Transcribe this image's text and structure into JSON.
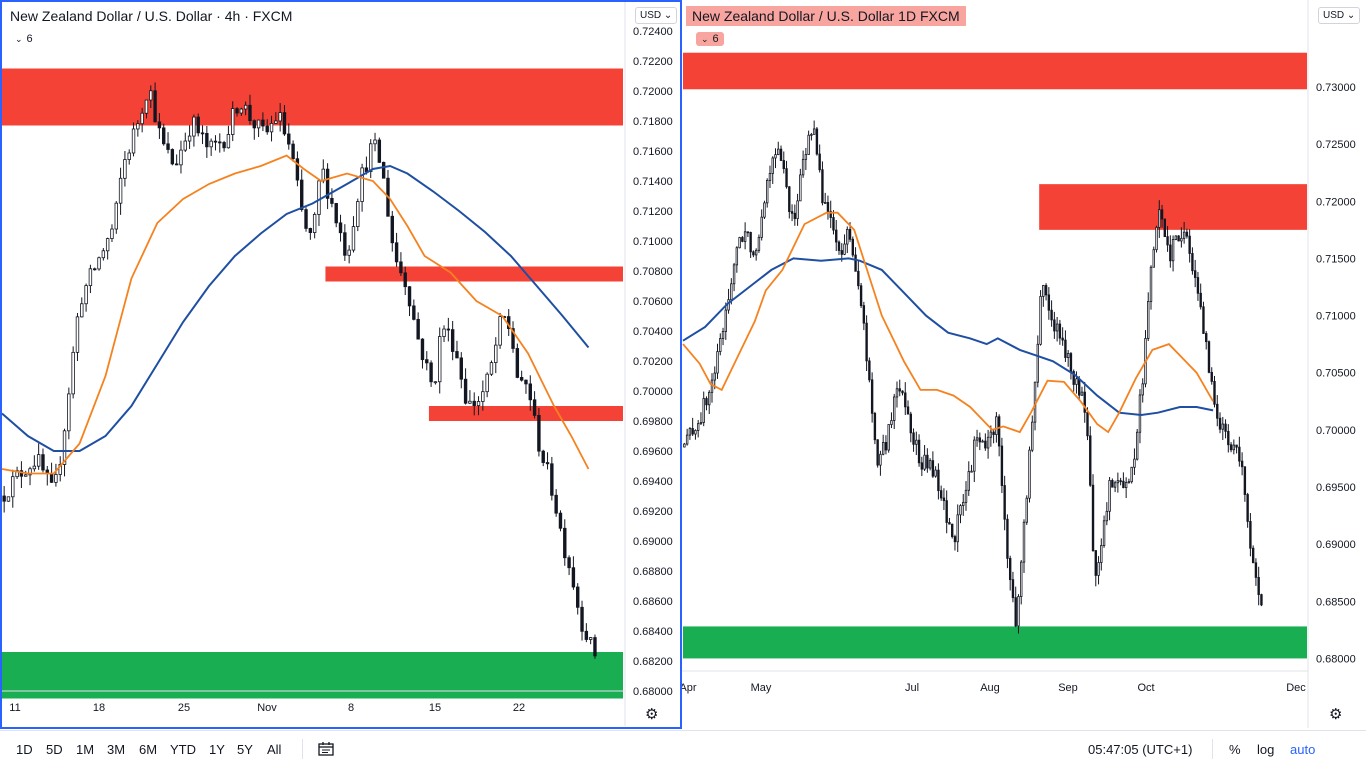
{
  "colors": {
    "resistance": "#f44336",
    "support": "#1aae53",
    "ma_fast": "#f5821f",
    "ma_slow": "#1e4fa3",
    "candle": "#131722",
    "active_border": "#2962ff",
    "title_highlight": "#f8a5a0"
  },
  "left_panel": {
    "title": "New Zealand Dollar / U.S. Dollar · 4h · FXCM",
    "indicator_count": "6",
    "currency": "USD",
    "settings_icon": "gear-icon"
  },
  "right_panel": {
    "title": "New Zealand Dollar / U.S. Dollar   1D   FXCM",
    "indicator_count": "6",
    "currency": "USD",
    "settings_icon": "gear-icon"
  },
  "chart_data": [
    {
      "type": "candlestick",
      "timeframe": "4h",
      "yaxis": {
        "ticks": [
          "0.72400",
          "0.72200",
          "0.72000",
          "0.71800",
          "0.71600",
          "0.71400",
          "0.71200",
          "0.71000",
          "0.70800",
          "0.70600",
          "0.70400",
          "0.70200",
          "0.70000",
          "0.69800",
          "0.69600",
          "0.69400",
          "0.69200",
          "0.69000",
          "0.68800",
          "0.68600",
          "0.68400",
          "0.68200",
          "0.68000"
        ],
        "range": [
          0.68,
          0.7242
        ]
      },
      "xaxis": {
        "ticks": [
          "11",
          "18",
          "25",
          "Nov",
          "8",
          "15",
          "22"
        ],
        "range": [
          0,
          144
        ]
      },
      "zones": [
        {
          "kind": "resistance",
          "x_start": 0,
          "x_end": 144,
          "top": 0.7215,
          "bottom": 0.7177
        },
        {
          "kind": "resistance",
          "x_start": 75,
          "x_end": 144,
          "top": 0.7083,
          "bottom": 0.7073
        },
        {
          "kind": "resistance",
          "x_start": 99,
          "x_end": 144,
          "top": 0.699,
          "bottom": 0.698
        },
        {
          "kind": "support",
          "x_start": 0,
          "x_end": 144,
          "top": 0.6826,
          "bottom": 0.6795
        }
      ],
      "ma_fast": [
        [
          0,
          0.6948
        ],
        [
          6,
          0.6945
        ],
        [
          12,
          0.6945
        ],
        [
          18,
          0.6965
        ],
        [
          24,
          0.701
        ],
        [
          30,
          0.7075
        ],
        [
          36,
          0.7112
        ],
        [
          42,
          0.7128
        ],
        [
          48,
          0.7138
        ],
        [
          54,
          0.7145
        ],
        [
          60,
          0.715
        ],
        [
          66,
          0.7157
        ],
        [
          70,
          0.7148
        ],
        [
          74,
          0.714
        ],
        [
          80,
          0.7145
        ],
        [
          86,
          0.714
        ],
        [
          90,
          0.7128
        ],
        [
          94,
          0.711
        ],
        [
          98,
          0.709
        ],
        [
          104,
          0.7079
        ],
        [
          110,
          0.706
        ],
        [
          116,
          0.705
        ],
        [
          122,
          0.7025
        ],
        [
          128,
          0.699
        ],
        [
          132,
          0.697
        ],
        [
          136,
          0.6948
        ]
      ],
      "ma_slow": [
        [
          0,
          0.6985
        ],
        [
          6,
          0.697
        ],
        [
          12,
          0.696
        ],
        [
          18,
          0.696
        ],
        [
          24,
          0.697
        ],
        [
          30,
          0.699
        ],
        [
          36,
          0.7018
        ],
        [
          42,
          0.7046
        ],
        [
          48,
          0.707
        ],
        [
          54,
          0.709
        ],
        [
          60,
          0.7105
        ],
        [
          66,
          0.7118
        ],
        [
          72,
          0.7125
        ],
        [
          80,
          0.7138
        ],
        [
          86,
          0.7148
        ],
        [
          90,
          0.715
        ],
        [
          94,
          0.7145
        ],
        [
          100,
          0.7133
        ],
        [
          106,
          0.712
        ],
        [
          112,
          0.7106
        ],
        [
          118,
          0.709
        ],
        [
          124,
          0.707
        ],
        [
          130,
          0.705
        ],
        [
          136,
          0.7029
        ]
      ],
      "price": [
        [
          0,
          0.693
        ],
        [
          4,
          0.6945
        ],
        [
          8,
          0.6955
        ],
        [
          12,
          0.693
        ],
        [
          14,
          0.6965
        ],
        [
          18,
          0.706
        ],
        [
          22,
          0.7085
        ],
        [
          26,
          0.711
        ],
        [
          28,
          0.715
        ],
        [
          31,
          0.7175
        ],
        [
          34,
          0.7205
        ],
        [
          37,
          0.7165
        ],
        [
          40,
          0.715
        ],
        [
          44,
          0.718
        ],
        [
          48,
          0.716
        ],
        [
          52,
          0.717
        ],
        [
          55,
          0.7195
        ],
        [
          58,
          0.718
        ],
        [
          61,
          0.717
        ],
        [
          64,
          0.7185
        ],
        [
          67,
          0.716
        ],
        [
          70,
          0.711
        ],
        [
          72,
          0.71
        ],
        [
          74,
          0.715
        ],
        [
          77,
          0.712
        ],
        [
          80,
          0.709
        ],
        [
          83,
          0.714
        ],
        [
          86,
          0.7165
        ],
        [
          88,
          0.715
        ],
        [
          91,
          0.709
        ],
        [
          94,
          0.707
        ],
        [
          96,
          0.704
        ],
        [
          98,
          0.702
        ],
        [
          100,
          0.7
        ],
        [
          102,
          0.7045
        ],
        [
          105,
          0.703
        ],
        [
          108,
          0.699
        ],
        [
          111,
          0.6995
        ],
        [
          113,
          0.701
        ],
        [
          116,
          0.705
        ],
        [
          118,
          0.704
        ],
        [
          120,
          0.7
        ],
        [
          122,
          0.7005
        ],
        [
          124,
          0.697
        ],
        [
          126,
          0.695
        ],
        [
          128,
          0.693
        ],
        [
          130,
          0.69
        ],
        [
          132,
          0.688
        ],
        [
          134,
          0.685
        ],
        [
          136,
          0.6835
        ],
        [
          137,
          0.6825
        ]
      ]
    },
    {
      "type": "candlestick",
      "timeframe": "1D",
      "yaxis": {
        "ticks": [
          "0.73000",
          "0.72500",
          "0.72000",
          "0.71500",
          "0.71000",
          "0.70500",
          "0.70000",
          "0.69500",
          "0.69000",
          "0.68500",
          "0.68000"
        ],
        "range": [
          0.6789,
          0.7328
        ]
      },
      "xaxis": {
        "ticks": [
          "Apr",
          "May",
          "Jul",
          "Aug",
          "Sep",
          "Oct",
          "Dec"
        ],
        "range": [
          0,
          226
        ]
      },
      "zones": [
        {
          "kind": "resistance",
          "x_start": 0,
          "x_end": 226,
          "top": 0.733,
          "bottom": 0.7298
        },
        {
          "kind": "resistance",
          "x_start": 129,
          "x_end": 226,
          "top": 0.7215,
          "bottom": 0.7175
        },
        {
          "kind": "support",
          "x_start": 0,
          "x_end": 226,
          "top": 0.6828,
          "bottom": 0.68
        }
      ],
      "ma_fast": [
        [
          0,
          0.7075
        ],
        [
          6,
          0.7058
        ],
        [
          10,
          0.704
        ],
        [
          14,
          0.7035
        ],
        [
          20,
          0.7065
        ],
        [
          26,
          0.7095
        ],
        [
          30,
          0.7122
        ],
        [
          36,
          0.714
        ],
        [
          44,
          0.718
        ],
        [
          52,
          0.719
        ],
        [
          56,
          0.719
        ],
        [
          62,
          0.7175
        ],
        [
          66,
          0.7145
        ],
        [
          72,
          0.71
        ],
        [
          80,
          0.706
        ],
        [
          86,
          0.7035
        ],
        [
          92,
          0.7035
        ],
        [
          98,
          0.703
        ],
        [
          104,
          0.702
        ],
        [
          112,
          0.7
        ],
        [
          116,
          0.7003
        ],
        [
          122,
          0.6998
        ],
        [
          126,
          0.7015
        ],
        [
          132,
          0.7043
        ],
        [
          138,
          0.7042
        ],
        [
          144,
          0.7025
        ],
        [
          150,
          0.7005
        ],
        [
          154,
          0.6998
        ],
        [
          158,
          0.7015
        ],
        [
          164,
          0.7045
        ],
        [
          170,
          0.707
        ],
        [
          176,
          0.7075
        ],
        [
          182,
          0.706
        ],
        [
          186,
          0.705
        ],
        [
          192,
          0.7025
        ]
      ],
      "ma_slow": [
        [
          0,
          0.7078
        ],
        [
          8,
          0.709
        ],
        [
          16,
          0.711
        ],
        [
          24,
          0.7125
        ],
        [
          32,
          0.714
        ],
        [
          40,
          0.715
        ],
        [
          50,
          0.7148
        ],
        [
          60,
          0.715
        ],
        [
          64,
          0.7148
        ],
        [
          72,
          0.714
        ],
        [
          80,
          0.712
        ],
        [
          88,
          0.71
        ],
        [
          96,
          0.7085
        ],
        [
          104,
          0.708
        ],
        [
          110,
          0.7075
        ],
        [
          114,
          0.708
        ],
        [
          122,
          0.707
        ],
        [
          128,
          0.7065
        ],
        [
          134,
          0.706
        ],
        [
          142,
          0.7048
        ],
        [
          150,
          0.703
        ],
        [
          158,
          0.7015
        ],
        [
          166,
          0.7013
        ],
        [
          172,
          0.7015
        ],
        [
          180,
          0.702
        ],
        [
          186,
          0.702
        ],
        [
          192,
          0.7017
        ]
      ],
      "price": [
        [
          0,
          0.6985
        ],
        [
          6,
          0.701
        ],
        [
          10,
          0.7035
        ],
        [
          14,
          0.708
        ],
        [
          18,
          0.714
        ],
        [
          22,
          0.7175
        ],
        [
          26,
          0.7155
        ],
        [
          30,
          0.721
        ],
        [
          33,
          0.725
        ],
        [
          36,
          0.723
        ],
        [
          40,
          0.718
        ],
        [
          44,
          0.724
        ],
        [
          47,
          0.727
        ],
        [
          50,
          0.721
        ],
        [
          54,
          0.718
        ],
        [
          57,
          0.7145
        ],
        [
          60,
          0.718
        ],
        [
          63,
          0.713
        ],
        [
          66,
          0.708
        ],
        [
          70,
          0.697
        ],
        [
          74,
          0.699
        ],
        [
          78,
          0.7045
        ],
        [
          82,
          0.701
        ],
        [
          86,
          0.697
        ],
        [
          90,
          0.697
        ],
        [
          94,
          0.6935
        ],
        [
          98,
          0.6905
        ],
        [
          102,
          0.694
        ],
        [
          106,
          0.699
        ],
        [
          110,
          0.6985
        ],
        [
          114,
          0.701
        ],
        [
          117,
          0.69
        ],
        [
          119,
          0.6855
        ],
        [
          121,
          0.683
        ],
        [
          123,
          0.6905
        ],
        [
          127,
          0.702
        ],
        [
          130,
          0.7135
        ],
        [
          133,
          0.71
        ],
        [
          136,
          0.7085
        ],
        [
          140,
          0.7055
        ],
        [
          143,
          0.704
        ],
        [
          146,
          0.701
        ],
        [
          149,
          0.688
        ],
        [
          151,
          0.688
        ],
        [
          154,
          0.6945
        ],
        [
          157,
          0.6965
        ],
        [
          160,
          0.6945
        ],
        [
          164,
          0.6985
        ],
        [
          167,
          0.706
        ],
        [
          170,
          0.715
        ],
        [
          173,
          0.7195
        ],
        [
          176,
          0.715
        ],
        [
          180,
          0.7175
        ],
        [
          183,
          0.7165
        ],
        [
          186,
          0.712
        ],
        [
          189,
          0.708
        ],
        [
          192,
          0.703
        ],
        [
          195,
          0.7
        ],
        [
          198,
          0.699
        ],
        [
          201,
          0.699
        ],
        [
          204,
          0.693
        ],
        [
          206,
          0.689
        ],
        [
          208,
          0.686
        ],
        [
          209,
          0.684
        ]
      ]
    }
  ],
  "bottom_bar": {
    "ranges": [
      "1D",
      "5D",
      "1M",
      "3M",
      "6M",
      "YTD",
      "1Y",
      "5Y",
      "All"
    ],
    "compare_icon": "date-range-icon",
    "time": "05:47:05 (UTC+1)",
    "percent": "%",
    "log": "log",
    "auto": "auto"
  }
}
